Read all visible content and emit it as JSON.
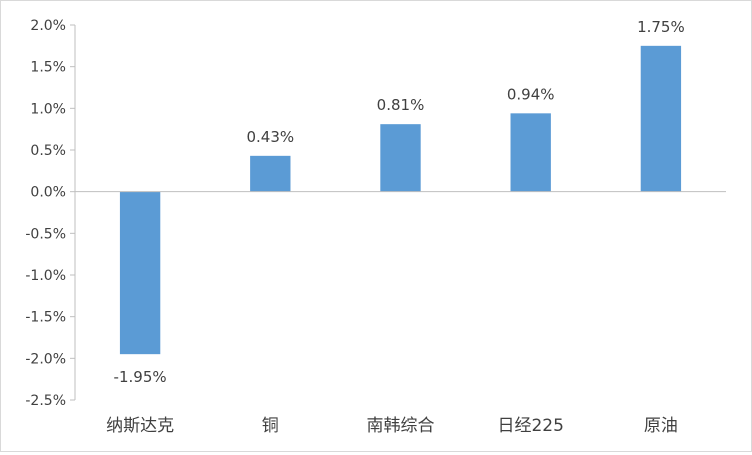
{
  "chart_data": {
    "type": "bar",
    "categories": [
      "纳斯达克",
      "铜",
      "南韩综合",
      "日经225",
      "原油"
    ],
    "values": [
      -1.95,
      0.43,
      0.81,
      0.94,
      1.75
    ],
    "data_labels": [
      "-1.95%",
      "0.43%",
      "0.81%",
      "0.94%",
      "1.75%"
    ],
    "ylim": [
      -2.5,
      2.0
    ],
    "yticks": [
      2.0,
      1.5,
      1.0,
      0.5,
      0.0,
      -0.5,
      -1.0,
      -1.5,
      -2.0,
      -2.5
    ],
    "ytick_labels": [
      "2.0%",
      "1.5%",
      "1.0%",
      "0.5%",
      "0.0%",
      "-0.5%",
      "-1.0%",
      "-1.5%",
      "-2.0%",
      "-2.5%"
    ],
    "grid": false,
    "legend": "none",
    "bar_color": "#5b9bd5",
    "axis_color": "#bfbfbf",
    "text_color": "#404040"
  }
}
